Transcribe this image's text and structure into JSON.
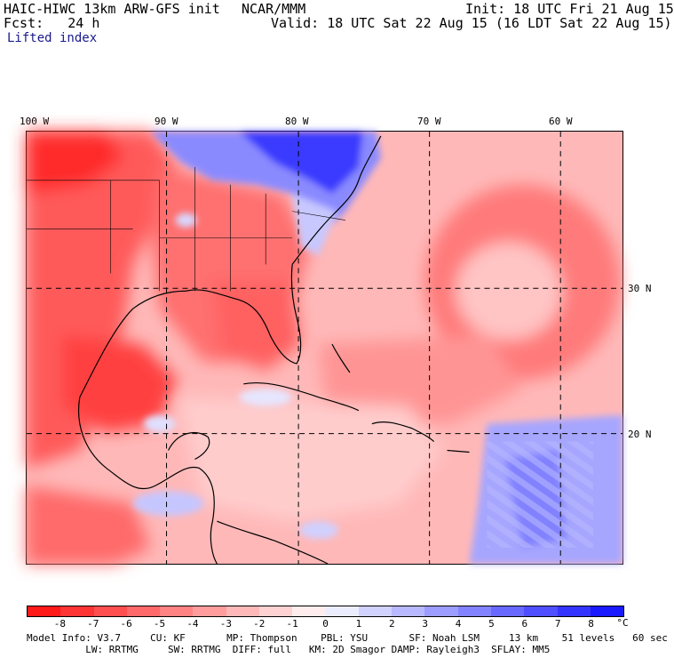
{
  "header": {
    "model": "HAIC-HIWC 13km ARW-GFS init",
    "agency": "NCAR/MMM",
    "init": "Init: 18 UTC Fri 21 Aug 15",
    "fcst": "Fcst:   24 h",
    "valid": "Valid: 18 UTC Sat 22 Aug 15 (16 LDT Sat 22 Aug 15)",
    "field": "Lifted index"
  },
  "axes": {
    "lon_labels": [
      "100 W",
      "90 W",
      "80 W",
      "70 W",
      "60 W"
    ],
    "lat_labels": [
      "30 N",
      "20 N"
    ]
  },
  "colorbar": {
    "tick_labels": [
      "-8",
      "-7",
      "-6",
      "-5",
      "-4",
      "-3",
      "-2",
      "-1",
      "0",
      "1",
      "2",
      "3",
      "4",
      "5",
      "6",
      "7",
      "8"
    ],
    "unit": "°C",
    "colors": [
      "#ff1a1a",
      "#ff3434",
      "#ff4f4f",
      "#ff6969",
      "#ff8383",
      "#ff9d9d",
      "#ffb8b8",
      "#ffd2d2",
      "#ffecec",
      "#ececff",
      "#d2d2ff",
      "#b8b8ff",
      "#9d9dff",
      "#8383ff",
      "#6969ff",
      "#4f4fff",
      "#3434ff",
      "#1a1aff"
    ]
  },
  "footer": {
    "line1": "Model Info: V3.7     CU: KF       MP: Thompson    PBL: YSU       SF: Noah LSM     13 km    51 levels   60 sec",
    "line2": "          LW: RRTMG     SW: RRTMG  DIFF: full   KM: 2D Smagor DAMP: Rayleigh3  SFLAY: MM5"
  }
}
